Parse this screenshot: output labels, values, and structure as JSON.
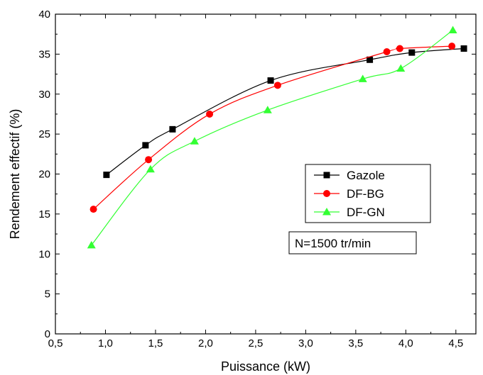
{
  "chart_data": {
    "type": "line",
    "xlabel": "Puissance (kW)",
    "ylabel": "Rendement effectif (%)",
    "xlim": [
      0.5,
      4.7
    ],
    "ylim": [
      0,
      40
    ],
    "xticks": [
      "0,5",
      "1,0",
      "1,5",
      "2,0",
      "2,5",
      "3,0",
      "3,5",
      "4,0",
      "4,5"
    ],
    "yticks": [
      "0",
      "5",
      "10",
      "15",
      "20",
      "25",
      "30",
      "35",
      "40"
    ],
    "legend_position": "center-right",
    "annotation": "N=1500 tr/min",
    "series": [
      {
        "name": "Gazole",
        "color": "#000000",
        "marker": "square",
        "x": [
          1.01,
          1.4,
          1.67,
          2.65,
          3.64,
          4.06,
          4.58
        ],
        "y": [
          19.9,
          23.6,
          25.6,
          31.7,
          34.3,
          35.2,
          35.7
        ]
      },
      {
        "name": "DF-BG",
        "color": "#ff0000",
        "marker": "circle",
        "x": [
          0.88,
          1.43,
          2.04,
          2.72,
          3.81,
          3.94,
          4.46
        ],
        "y": [
          15.6,
          21.8,
          27.5,
          31.1,
          35.3,
          35.7,
          36.0
        ]
      },
      {
        "name": "DF-GN",
        "color": "#33ff33",
        "marker": "triangle",
        "x": [
          0.86,
          1.45,
          1.89,
          2.62,
          3.57,
          3.95,
          4.47
        ],
        "y": [
          11.1,
          20.6,
          24.1,
          28.0,
          31.9,
          33.2,
          38.0
        ]
      }
    ]
  }
}
